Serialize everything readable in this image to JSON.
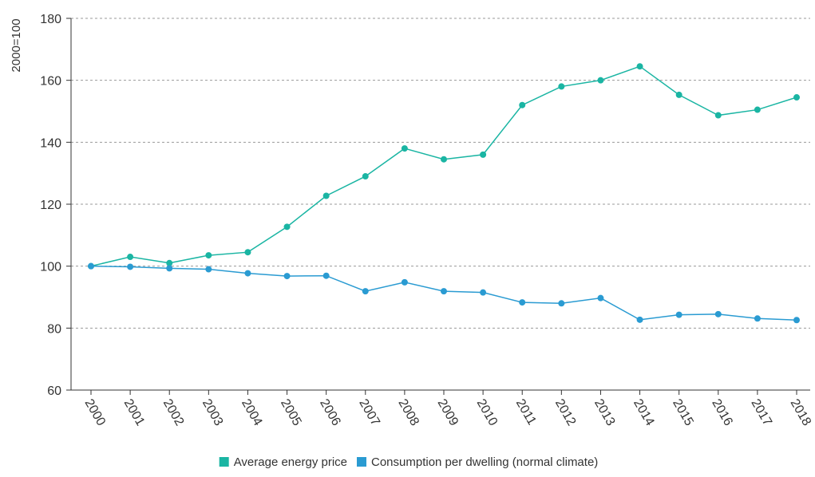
{
  "chart_data": {
    "type": "line",
    "ylabel": "2000=100",
    "ylim": [
      60,
      180
    ],
    "yticks": [
      60,
      80,
      100,
      120,
      140,
      160,
      180
    ],
    "categories": [
      "2000",
      "2001",
      "2002",
      "2003",
      "2004",
      "2005",
      "2006",
      "2007",
      "2008",
      "2009",
      "2010",
      "2011",
      "2012",
      "2013",
      "2014",
      "2015",
      "2016",
      "2017",
      "2018"
    ],
    "grid": "horizontal dashed",
    "legend_position": "bottom",
    "series": [
      {
        "name": "Average energy price",
        "color": "#1ab5a3",
        "values": [
          100,
          103,
          101,
          103.5,
          104.5,
          112.7,
          122.7,
          129,
          138,
          134.5,
          136,
          152,
          158,
          160,
          164.5,
          155.3,
          148.7,
          150.5,
          154.5
        ]
      },
      {
        "name": "Consumption per dwelling (normal climate)",
        "color": "#2a9bd2",
        "values": [
          100,
          99.8,
          99.3,
          99,
          97.7,
          96.8,
          96.9,
          91.9,
          94.8,
          91.9,
          91.5,
          88.3,
          88,
          89.7,
          82.7,
          84.3,
          84.5,
          83.1,
          82.6
        ]
      }
    ]
  }
}
